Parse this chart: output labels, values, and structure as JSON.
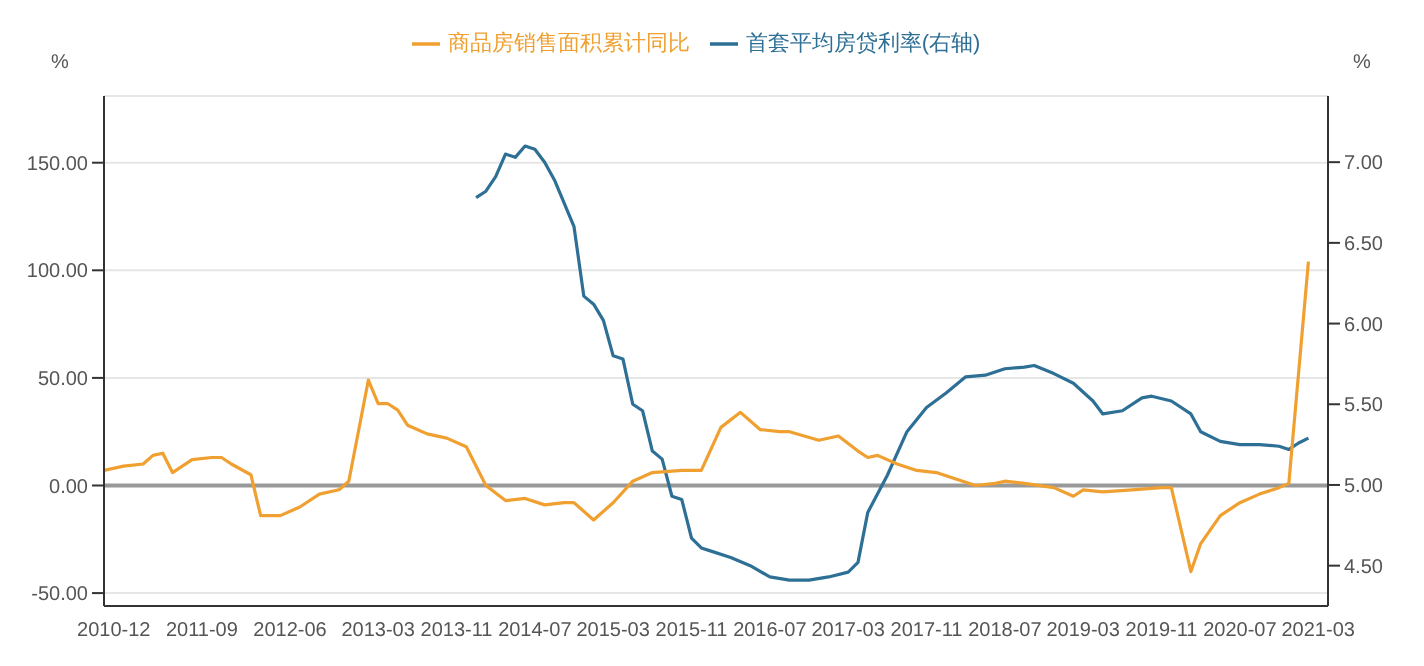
{
  "chart_data": {
    "type": "line",
    "legend": "top",
    "grid": "y",
    "marker": "none",
    "ylabel": "%",
    "y2label": "%",
    "xlim": [
      "2010-11",
      "2021-04"
    ],
    "xticks": [
      "2010-12",
      "2011-09",
      "2012-06",
      "2013-03",
      "2013-11",
      "2014-07",
      "2015-03",
      "2015-11",
      "2016-07",
      "2017-03",
      "2017-11",
      "2018-07",
      "2019-03",
      "2019-11",
      "2020-07",
      "2021-03"
    ],
    "ylim": [
      -56,
      181
    ],
    "yticks": [
      {
        "value": -50,
        "label": "-50.00"
      },
      {
        "value": 0,
        "label": "0.00"
      },
      {
        "value": 50,
        "label": "50.00"
      },
      {
        "value": 100,
        "label": "100.00"
      },
      {
        "value": 150,
        "label": "150.00"
      }
    ],
    "y2lim": [
      4.25,
      7.41
    ],
    "y2ticks": [
      {
        "value": 4.5,
        "label": "4.50"
      },
      {
        "value": 5,
        "label": "5.00"
      },
      {
        "value": 5.5,
        "label": "5.50"
      },
      {
        "value": 6,
        "label": "6.00"
      },
      {
        "value": 6.5,
        "label": "6.50"
      },
      {
        "value": 7,
        "label": "7.00"
      }
    ],
    "ref_lines": [
      {
        "axis": "y",
        "value": 0,
        "color": "#999999"
      }
    ],
    "series": [
      {
        "name": "首套平均房贷利率(右轴)",
        "color": "#2e6f96",
        "axis": "y2",
        "x": [
          "2014-01",
          "2014-02",
          "2014-03",
          "2014-04",
          "2014-05",
          "2014-06",
          "2014-07",
          "2014-08",
          "2014-09",
          "2014-11",
          "2014-12",
          "2015-01",
          "2015-02",
          "2015-03",
          "2015-04",
          "2015-05",
          "2015-06",
          "2015-07",
          "2015-08",
          "2015-09",
          "2015-10",
          "2015-11",
          "2015-12",
          "2016-01",
          "2016-03",
          "2016-05",
          "2016-07",
          "2016-09",
          "2016-11",
          "2017-01",
          "2017-03",
          "2017-04",
          "2017-05",
          "2017-07",
          "2017-09",
          "2017-11",
          "2018-01",
          "2018-03",
          "2018-05",
          "2018-07",
          "2018-09",
          "2018-10",
          "2018-12",
          "2019-02",
          "2019-04",
          "2019-05",
          "2019-07",
          "2019-09",
          "2019-10",
          "2019-12",
          "2020-02",
          "2020-03",
          "2020-05",
          "2020-07",
          "2020-09",
          "2020-11",
          "2020-12",
          "2021-01",
          "2021-02"
        ],
        "values": [
          6.78,
          6.82,
          6.91,
          7.05,
          7.03,
          7.1,
          7.08,
          7.0,
          6.89,
          6.6,
          6.17,
          6.12,
          6.02,
          5.8,
          5.78,
          5.5,
          5.46,
          5.21,
          5.16,
          4.93,
          4.91,
          4.67,
          4.61,
          4.59,
          4.55,
          4.5,
          4.43,
          4.41,
          4.41,
          4.43,
          4.46,
          4.52,
          4.83,
          5.06,
          5.33,
          5.48,
          5.57,
          5.67,
          5.68,
          5.72,
          5.73,
          5.74,
          5.69,
          5.63,
          5.52,
          5.44,
          5.46,
          5.54,
          5.55,
          5.52,
          5.44,
          5.33,
          5.27,
          5.25,
          5.25,
          5.24,
          5.22,
          5.26,
          5.29
        ]
      },
      {
        "name": "商品房销售面积累计同比",
        "color": "#f0a030",
        "x": [
          "2010-11",
          "2011-01",
          "2011-03",
          "2011-04",
          "2011-05",
          "2011-06",
          "2011-08",
          "2011-10",
          "2011-11",
          "2011-12",
          "2012-02",
          "2012-03",
          "2012-05",
          "2012-07",
          "2012-09",
          "2012-11",
          "2012-12",
          "2013-02",
          "2013-03",
          "2013-04",
          "2013-05",
          "2013-06",
          "2013-08",
          "2013-10",
          "2013-12",
          "2014-02",
          "2014-04",
          "2014-06",
          "2014-08",
          "2014-10",
          "2014-11",
          "2015-01",
          "2015-03",
          "2015-05",
          "2015-07",
          "2015-10",
          "2015-12",
          "2016-02",
          "2016-04",
          "2016-06",
          "2016-08",
          "2016-09",
          "2016-12",
          "2017-02",
          "2017-04",
          "2017-05",
          "2017-06",
          "2017-08",
          "2017-10",
          "2017-12",
          "2018-02",
          "2018-04",
          "2018-06",
          "2018-07",
          "2018-09",
          "2018-12",
          "2019-02",
          "2019-03",
          "2019-05",
          "2019-08",
          "2019-11",
          "2019-12",
          "2020-02",
          "2020-03",
          "2020-05",
          "2020-07",
          "2020-09",
          "2020-11",
          "2020-12",
          "2021-02"
        ],
        "values": [
          7,
          9,
          10,
          14,
          15,
          6,
          12,
          13,
          13,
          10,
          5,
          -14,
          -14,
          -10,
          -4,
          -2,
          2,
          49,
          38,
          38,
          35,
          28,
          24,
          22,
          18,
          0,
          -7,
          -6,
          -9,
          -8,
          -8,
          -16,
          -8,
          2,
          6,
          7,
          7,
          27,
          34,
          26,
          25,
          25,
          21,
          23,
          16,
          13,
          14,
          10,
          7,
          6,
          3,
          0,
          1,
          2,
          1,
          -1,
          -5,
          -2,
          -3,
          -2,
          -1,
          -1,
          -40,
          -27,
          -14,
          -8,
          -4,
          -1,
          1,
          104
        ]
      }
    ]
  }
}
